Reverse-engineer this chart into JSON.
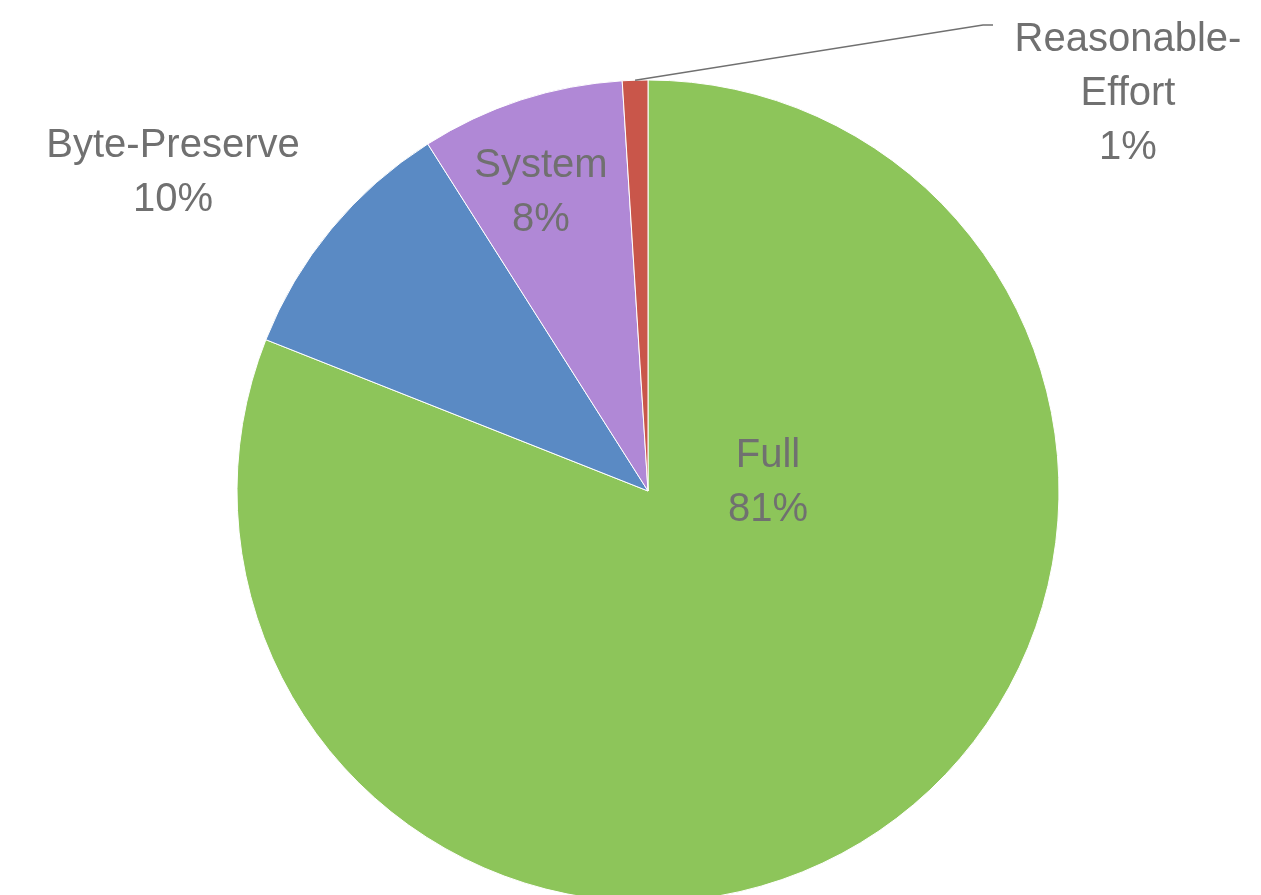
{
  "chart_data": {
    "type": "pie",
    "categories": [
      "Full",
      "Byte-Preserve",
      "System",
      "Reasonable-Effort"
    ],
    "values": [
      81,
      10,
      8,
      1
    ],
    "colors": [
      "#8dc55a",
      "#5a8ac4",
      "#b088d6",
      "#c9564a"
    ],
    "value_labels": [
      "81%",
      "10%",
      "8%",
      "1%"
    ]
  }
}
